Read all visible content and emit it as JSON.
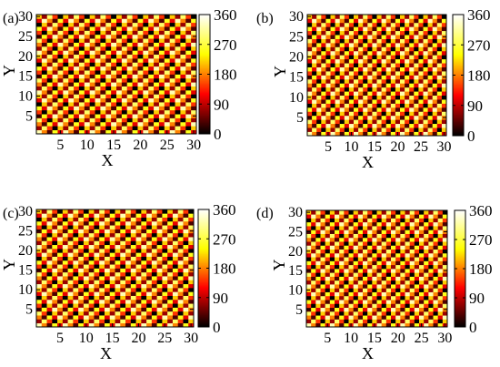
{
  "chart_data": [
    {
      "type": "heatmap",
      "panel_label": "(a)",
      "xlabel": "X",
      "ylabel": "Y",
      "x_ticks": [
        5,
        10,
        15,
        20,
        25,
        30
      ],
      "y_ticks": [
        5,
        10,
        15,
        20,
        25,
        30
      ],
      "xlim": [
        0.5,
        30.5
      ],
      "ylim": [
        0.5,
        30.5
      ],
      "grid_size": [
        30,
        30
      ],
      "value_pattern": {
        "kx": 6,
        "ky": 3,
        "wavelength": 10
      },
      "colorbar": {
        "range": [
          0,
          360
        ],
        "ticks": [
          0,
          90,
          180,
          270,
          360
        ],
        "colormap": "hot"
      }
    },
    {
      "type": "heatmap",
      "panel_label": "(b)",
      "xlabel": "X",
      "ylabel": "Y",
      "x_ticks": [
        5,
        10,
        15,
        20,
        25,
        30
      ],
      "y_ticks": [
        5,
        10,
        15,
        20,
        25,
        30
      ],
      "xlim": [
        0.5,
        30.5
      ],
      "ylim": [
        0.5,
        30.5
      ],
      "grid_size": [
        30,
        30
      ],
      "value_pattern": {
        "kx": 6,
        "ky": 3,
        "wavelength": 10
      },
      "colorbar": {
        "range": [
          0,
          360
        ],
        "ticks": [
          0,
          90,
          180,
          270,
          360
        ],
        "colormap": "hot"
      }
    },
    {
      "type": "heatmap",
      "panel_label": "(c)",
      "xlabel": "X",
      "ylabel": "Y",
      "x_ticks": [
        5,
        10,
        15,
        20,
        25,
        30
      ],
      "y_ticks": [
        5,
        10,
        15,
        20,
        25,
        30
      ],
      "xlim": [
        0.5,
        30.5
      ],
      "ylim": [
        0.5,
        30.5
      ],
      "grid_size": [
        30,
        30
      ],
      "value_pattern": {
        "kx": 6,
        "ky": 3,
        "wavelength": 10
      },
      "colorbar": {
        "range": [
          0,
          360
        ],
        "ticks": [
          0,
          90,
          180,
          270,
          360
        ],
        "colormap": "hot"
      }
    },
    {
      "type": "heatmap",
      "panel_label": "(d)",
      "xlabel": "X",
      "ylabel": "Y",
      "x_ticks": [
        5,
        10,
        15,
        20,
        25,
        30
      ],
      "y_ticks": [
        5,
        10,
        15,
        20,
        25,
        30
      ],
      "xlim": [
        0.5,
        30.5
      ],
      "ylim": [
        0.5,
        30.5
      ],
      "grid_size": [
        30,
        30
      ],
      "value_pattern": {
        "kx": 6,
        "ky": 3,
        "wavelength": 10
      },
      "colorbar": {
        "range": [
          0,
          360
        ],
        "ticks": [
          0,
          90,
          180,
          270,
          360
        ],
        "colormap": "hot"
      }
    }
  ]
}
